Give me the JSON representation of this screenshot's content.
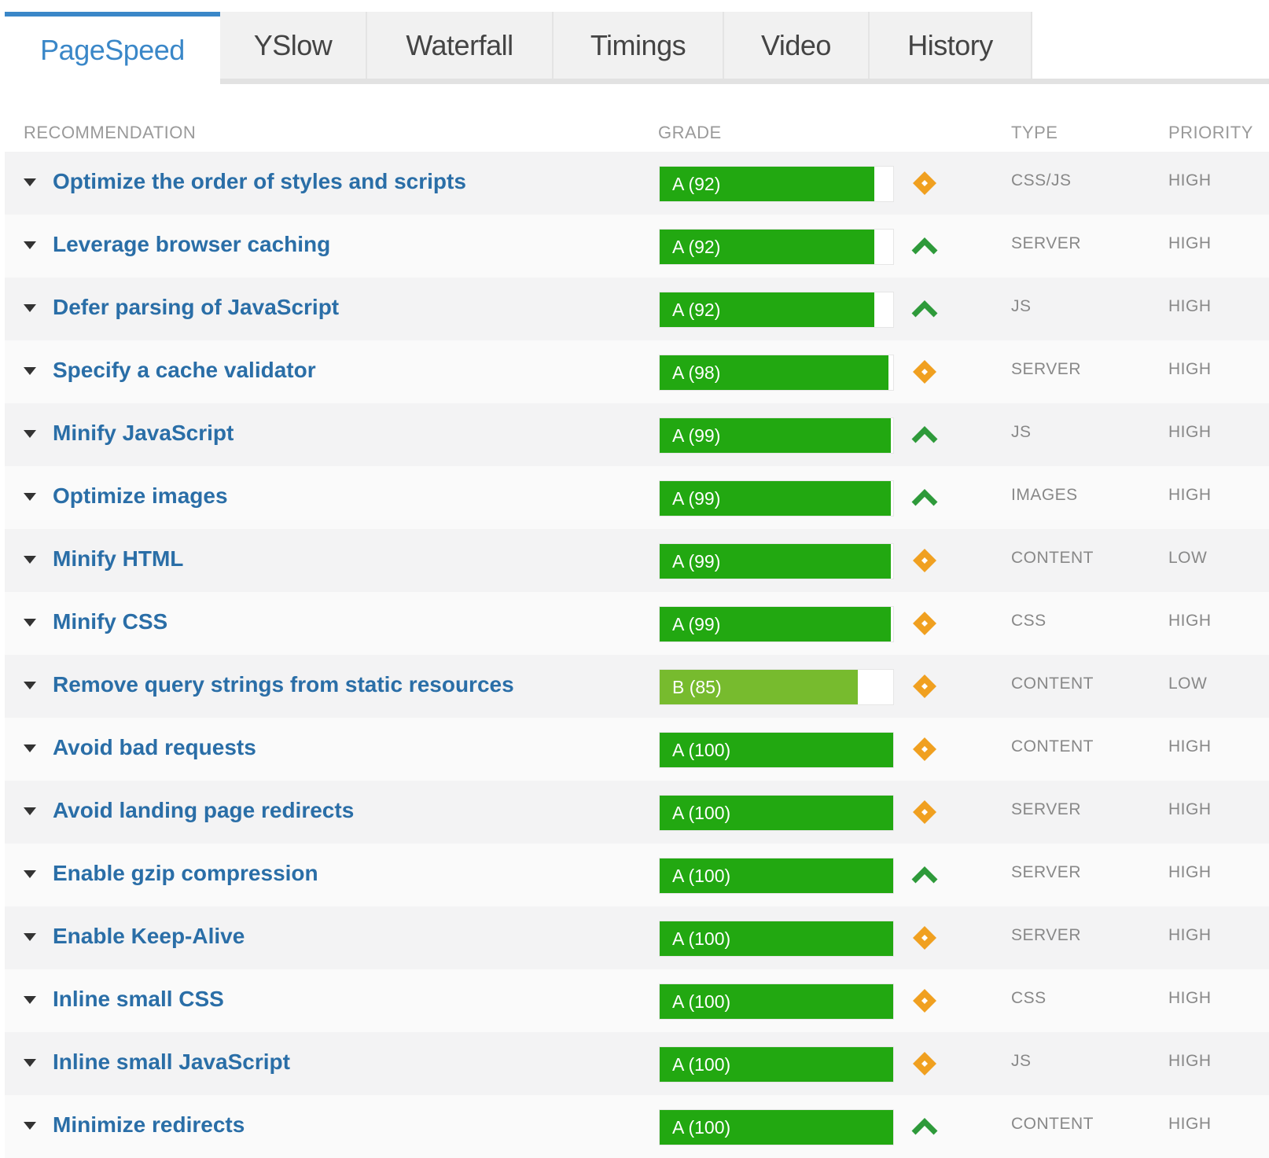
{
  "tabs": [
    "PageSpeed",
    "YSlow",
    "Waterfall",
    "Timings",
    "Video",
    "History"
  ],
  "active_tab": 0,
  "table": {
    "columns": [
      "RECOMMENDATION",
      "GRADE",
      "TYPE",
      "PRIORITY"
    ],
    "score_range": [
      0,
      100
    ],
    "rows": [
      {
        "title": "Optimize the order of styles and scripts",
        "grade_label": "A (92)",
        "score": 92,
        "color": "#22a811",
        "icon": "diamond",
        "type": "CSS/JS",
        "priority": "HIGH"
      },
      {
        "title": "Leverage browser caching",
        "grade_label": "A (92)",
        "score": 92,
        "color": "#22a811",
        "icon": "up",
        "type": "SERVER",
        "priority": "HIGH"
      },
      {
        "title": "Defer parsing of JavaScript",
        "grade_label": "A (92)",
        "score": 92,
        "color": "#22a811",
        "icon": "up",
        "type": "JS",
        "priority": "HIGH"
      },
      {
        "title": "Specify a cache validator",
        "grade_label": "A (98)",
        "score": 98,
        "color": "#22a811",
        "icon": "diamond",
        "type": "SERVER",
        "priority": "HIGH"
      },
      {
        "title": "Minify JavaScript",
        "grade_label": "A (99)",
        "score": 99,
        "color": "#22a811",
        "icon": "up",
        "type": "JS",
        "priority": "HIGH"
      },
      {
        "title": "Optimize images",
        "grade_label": "A (99)",
        "score": 99,
        "color": "#22a811",
        "icon": "up",
        "type": "IMAGES",
        "priority": "HIGH"
      },
      {
        "title": "Minify HTML",
        "grade_label": "A (99)",
        "score": 99,
        "color": "#22a811",
        "icon": "diamond",
        "type": "CONTENT",
        "priority": "LOW"
      },
      {
        "title": "Minify CSS",
        "grade_label": "A (99)",
        "score": 99,
        "color": "#22a811",
        "icon": "diamond",
        "type": "CSS",
        "priority": "HIGH"
      },
      {
        "title": "Remove query strings from static resources",
        "grade_label": "B (85)",
        "score": 85,
        "color": "#77bb2e",
        "icon": "diamond",
        "type": "CONTENT",
        "priority": "LOW"
      },
      {
        "title": "Avoid bad requests",
        "grade_label": "A (100)",
        "score": 100,
        "color": "#22a811",
        "icon": "diamond",
        "type": "CONTENT",
        "priority": "HIGH"
      },
      {
        "title": "Avoid landing page redirects",
        "grade_label": "A (100)",
        "score": 100,
        "color": "#22a811",
        "icon": "diamond",
        "type": "SERVER",
        "priority": "HIGH"
      },
      {
        "title": "Enable gzip compression",
        "grade_label": "A (100)",
        "score": 100,
        "color": "#22a811",
        "icon": "up",
        "type": "SERVER",
        "priority": "HIGH"
      },
      {
        "title": "Enable Keep-Alive",
        "grade_label": "A (100)",
        "score": 100,
        "color": "#22a811",
        "icon": "diamond",
        "type": "SERVER",
        "priority": "HIGH"
      },
      {
        "title": "Inline small CSS",
        "grade_label": "A (100)",
        "score": 100,
        "color": "#22a811",
        "icon": "diamond",
        "type": "CSS",
        "priority": "HIGH"
      },
      {
        "title": "Inline small JavaScript",
        "grade_label": "A (100)",
        "score": 100,
        "color": "#22a811",
        "icon": "diamond",
        "type": "JS",
        "priority": "HIGH"
      },
      {
        "title": "Minimize redirects",
        "grade_label": "A (100)",
        "score": 100,
        "color": "#22a811",
        "icon": "up",
        "type": "CONTENT",
        "priority": "HIGH"
      }
    ]
  }
}
